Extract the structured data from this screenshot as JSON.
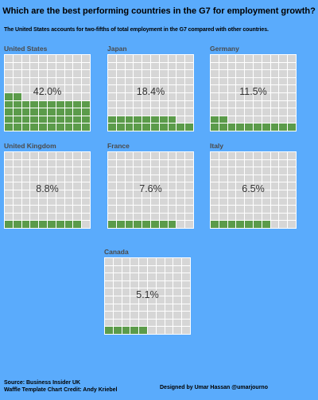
{
  "title": "Which are the best performing countries in the G7 for employment growth?",
  "subtitle": "The United States accounts for two-fifths of total employment in the G7 compared with other countries.",
  "colors": {
    "background": "#5aabfc",
    "filled": "#5b9b4a",
    "empty": "#d6d6d6",
    "gridline": "#ffffff"
  },
  "chart_data": {
    "type": "waffle",
    "units": "percent of total G7 employment",
    "grid": "10 x 10",
    "series": [
      {
        "name": "United States",
        "value": 42.0,
        "label": "42.0%"
      },
      {
        "name": "Japan",
        "value": 18.4,
        "label": "18.4%"
      },
      {
        "name": "Germany",
        "value": 11.5,
        "label": "11.5%"
      },
      {
        "name": "United Kingdom",
        "value": 8.8,
        "label": "8.8%"
      },
      {
        "name": "France",
        "value": 7.6,
        "label": "7.6%"
      },
      {
        "name": "Italy",
        "value": 6.5,
        "label": "6.5%"
      },
      {
        "name": "Canada",
        "value": 5.1,
        "label": "5.1%"
      }
    ]
  },
  "footer": {
    "source": "Source: Business Insider UK",
    "credit": "Waffle Template Chart Credit: Andy Kriebel",
    "designer": "Designed by Umar Hassan @umarjourno"
  }
}
